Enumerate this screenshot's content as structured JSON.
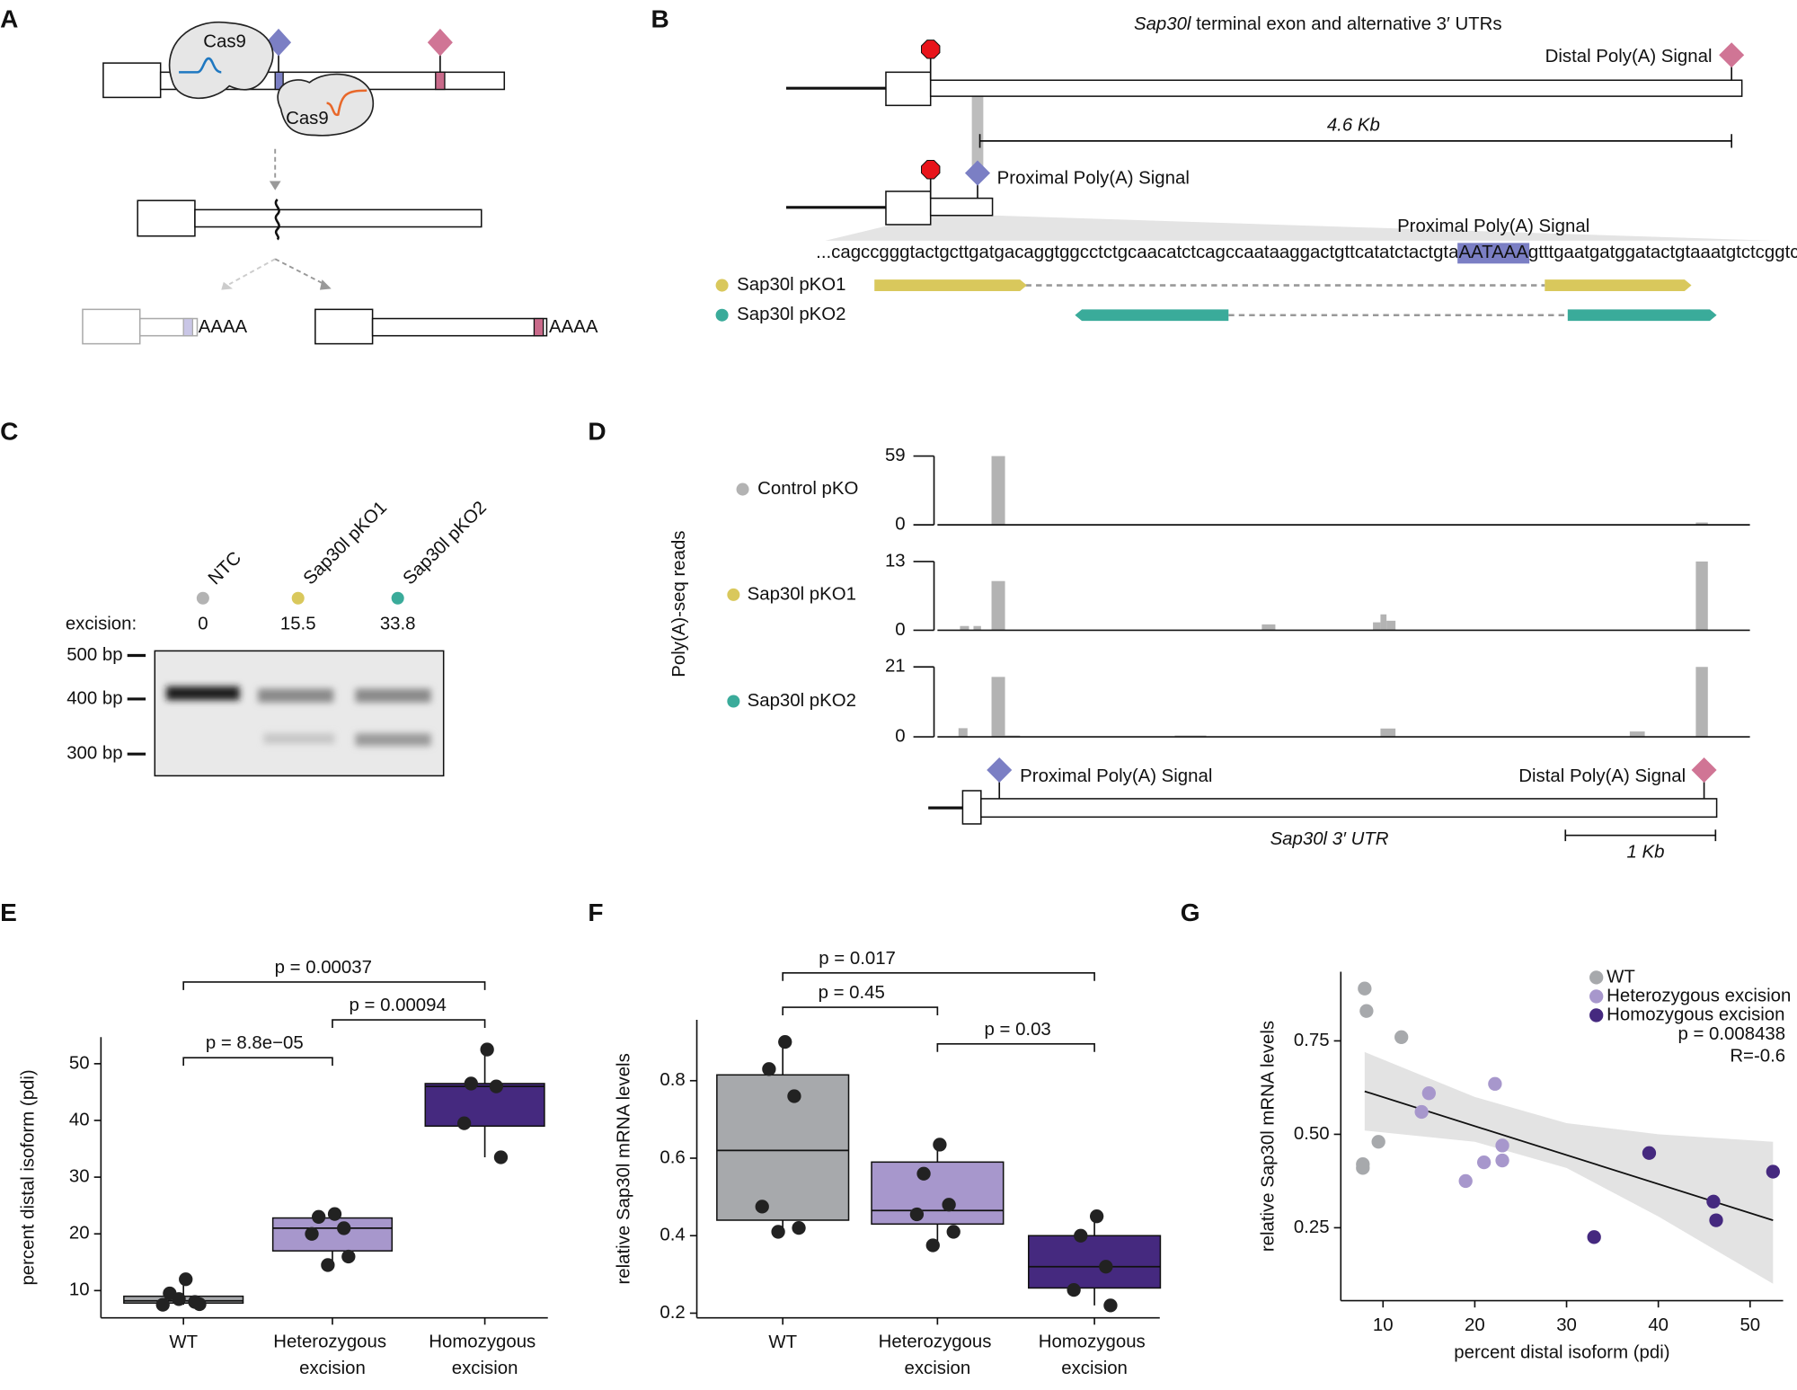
{
  "panel_labels": [
    "A",
    "B",
    "C",
    "D",
    "E",
    "F",
    "G"
  ],
  "panel_a": {
    "cas9_labels": [
      "Cas9",
      "Cas9"
    ],
    "polya_tails": [
      "AAAA",
      "AAAA"
    ]
  },
  "panel_b": {
    "title_gene": "Sap30l",
    "title_rest": " terminal exon and alternative 3′ UTRs",
    "distal_label": "Distal Poly(A) Signal",
    "span_label": "4.6 Kb",
    "proximal_label": "Proximal Poly(A) Signal",
    "sequence_label": "Proximal Poly(A) Signal",
    "sequence_left": "...cagccgggtactgcttgatgacaggtggcctctgcaacatctcagccaataaggactgttcatatctactgta",
    "motif": "AATAAA",
    "sequence_right": "gtttgaatgatggatactgtaaatgtctcggtcaggaggat...",
    "guides": [
      {
        "name": "Sap30l pKO1",
        "color": "#d9c85c"
      },
      {
        "name": "Sap30l pKO2",
        "color": "#3aab9a"
      }
    ]
  },
  "panel_c": {
    "excision_label": "excision:",
    "lanes": [
      {
        "name": "NTC",
        "color": "#b3b3b3",
        "excision": 0
      },
      {
        "name": "Sap30l pKO1",
        "color": "#d9c85c",
        "excision": 15.5
      },
      {
        "name": "Sap30l pKO2",
        "color": "#3aab9a",
        "excision": 33.8
      }
    ],
    "ladder": [
      "500 bp",
      "400 bp",
      "300 bp"
    ]
  },
  "panel_d_model": {
    "proximal_label": "Proximal Poly(A) Signal",
    "distal_label": "Distal Poly(A) Signal",
    "utr_label": "Sap30l 3′ UTR",
    "scale_label": "1 Kb"
  },
  "chart_data": [
    {
      "type": "coverage",
      "ylabel": "Poly(A)-seq reads",
      "xlim": [
        0,
        5.41
      ],
      "color": "#b3b3b3",
      "tracks": [
        {
          "name": "Control pKO",
          "dot": "#b3b3b3",
          "ylim": [
            0,
            59
          ],
          "yticks": [
            59,
            0
          ],
          "intervals": [
            {
              "start": 0.36,
              "end": 0.45,
              "value": 59
            },
            {
              "start": 5.05,
              "end": 5.13,
              "value": 2
            }
          ]
        },
        {
          "name": "Sap30l pKO1",
          "dot": "#d9c85c",
          "ylim": [
            0,
            13
          ],
          "yticks": [
            13,
            0
          ],
          "intervals": [
            {
              "start": 0.15,
              "end": 0.21,
              "value": 0.8
            },
            {
              "start": 0.24,
              "end": 0.29,
              "value": 0.8
            },
            {
              "start": 0.36,
              "end": 0.45,
              "value": 9.3
            },
            {
              "start": 2.16,
              "end": 2.25,
              "value": 1.1
            },
            {
              "start": 2.9,
              "end": 2.95,
              "value": 1.5
            },
            {
              "start": 2.95,
              "end": 2.99,
              "value": 3
            },
            {
              "start": 2.99,
              "end": 3.05,
              "value": 1.8
            },
            {
              "start": 5.05,
              "end": 5.13,
              "value": 13
            }
          ]
        },
        {
          "name": "Sap30l pKO2",
          "dot": "#3aab9a",
          "ylim": [
            0,
            21
          ],
          "yticks": [
            21,
            0
          ],
          "intervals": [
            {
              "start": 0.14,
              "end": 0.2,
              "value": 2.6
            },
            {
              "start": 0.36,
              "end": 0.45,
              "value": 18
            },
            {
              "start": 0.45,
              "end": 0.55,
              "value": 0.4
            },
            {
              "start": 1.58,
              "end": 1.79,
              "value": 0.4
            },
            {
              "start": 2.95,
              "end": 3.05,
              "value": 2.5
            },
            {
              "start": 4.61,
              "end": 4.71,
              "value": 1.6
            },
            {
              "start": 5.05,
              "end": 5.13,
              "value": 21
            }
          ]
        }
      ]
    },
    {
      "type": "box",
      "ylabel": "percent distal isoform (pdi)",
      "ylim": [
        5.2,
        54.7
      ],
      "yticks": [
        10,
        20,
        30,
        40,
        50
      ],
      "categories": [
        "WT",
        "Heterozygous excision",
        "Homozygous excision"
      ],
      "boxes": [
        {
          "color": "#a7a9ac",
          "whisker_low": 7.5,
          "q1": 7.8,
          "median": 8.2,
          "q3": 9,
          "whisker_high": 12,
          "points": [
            12,
            9.5,
            8,
            7.5,
            7.6,
            8.5
          ]
        },
        {
          "color": "#a797cc",
          "whisker_low": 14.5,
          "q1": 17,
          "median": 21,
          "q3": 22.8,
          "whisker_high": 23.5,
          "points": [
            23.5,
            23,
            21,
            20,
            16,
            14.5
          ]
        },
        {
          "color": "#45297f",
          "whisker_low": 33.5,
          "q1": 39,
          "median": 46,
          "q3": 46.5,
          "whisker_high": 52.5,
          "points": [
            52.5,
            46.5,
            46,
            39.5,
            33.5
          ]
        }
      ],
      "annotations": [
        "p = 8.8e−05",
        "p = 0.00094",
        "p = 0.00037"
      ]
    },
    {
      "type": "box",
      "ylabel": "relative Sap30l mRNA levels",
      "ylim": [
        0.188,
        0.957
      ],
      "yticks": [
        0.2,
        0.4,
        0.6,
        0.8
      ],
      "categories": [
        "WT",
        "Heterozygous excision",
        "Homozygous excision"
      ],
      "boxes": [
        {
          "color": "#a7a9ac",
          "whisker_low": 0.41,
          "q1": 0.44,
          "median": 0.62,
          "q3": 0.815,
          "whisker_high": 0.9,
          "points": [
            0.9,
            0.83,
            0.76,
            0.475,
            0.42,
            0.41
          ]
        },
        {
          "color": "#a797cc",
          "whisker_low": 0.375,
          "q1": 0.43,
          "median": 0.465,
          "q3": 0.59,
          "whisker_high": 0.635,
          "points": [
            0.635,
            0.56,
            0.48,
            0.455,
            0.41,
            0.375
          ]
        },
        {
          "color": "#45297f",
          "whisker_low": 0.22,
          "q1": 0.265,
          "median": 0.32,
          "q3": 0.4,
          "whisker_high": 0.45,
          "points": [
            0.45,
            0.4,
            0.32,
            0.26,
            0.22
          ]
        }
      ],
      "annotations": [
        "p = 0.017",
        "p = 0.45",
        "p = 0.03"
      ]
    },
    {
      "type": "scatter",
      "xlabel": "percent distal isoform (pdi)",
      "ylabel": "relative Sap30l mRNA levels",
      "xlim": [
        5.4,
        53.6
      ],
      "ylim": [
        0.055,
        0.935
      ],
      "xticks": [
        10,
        20,
        30,
        40,
        50
      ],
      "yticks": [
        0.25,
        {
          "value": 0.5,
          "label": "0.50"
        },
        0.75
      ],
      "series": [
        {
          "name": "WT",
          "color": "#a7a9ac",
          "x": [
            8,
            8.2,
            12,
            9.5,
            7.8,
            7.8
          ],
          "y": [
            0.89,
            0.83,
            0.76,
            0.48,
            0.42,
            0.41
          ]
        },
        {
          "name": "Heterozygous excision",
          "color": "#a797cc",
          "x": [
            15,
            14.2,
            22.2,
            23,
            23,
            21,
            19
          ],
          "y": [
            0.61,
            0.56,
            0.635,
            0.47,
            0.43,
            0.425,
            0.375
          ]
        },
        {
          "name": "Homozygous excision",
          "color": "#45297f",
          "x": [
            39,
            52.5,
            46,
            46.3,
            33
          ],
          "y": [
            0.45,
            0.4,
            0.32,
            0.27,
            0.225
          ]
        }
      ],
      "fit": {
        "x": [
          8,
          52.5
        ],
        "y": [
          0.615,
          0.27
        ]
      },
      "ci": {
        "x": [
          8,
          20,
          30,
          40,
          52.5
        ],
        "upper": [
          0.72,
          0.6,
          0.53,
          0.5,
          0.48
        ],
        "lower": [
          0.51,
          0.48,
          0.41,
          0.28,
          0.1
        ]
      },
      "annotations": [
        "p = 0.008438",
        "R=-0.6"
      ]
    }
  ]
}
